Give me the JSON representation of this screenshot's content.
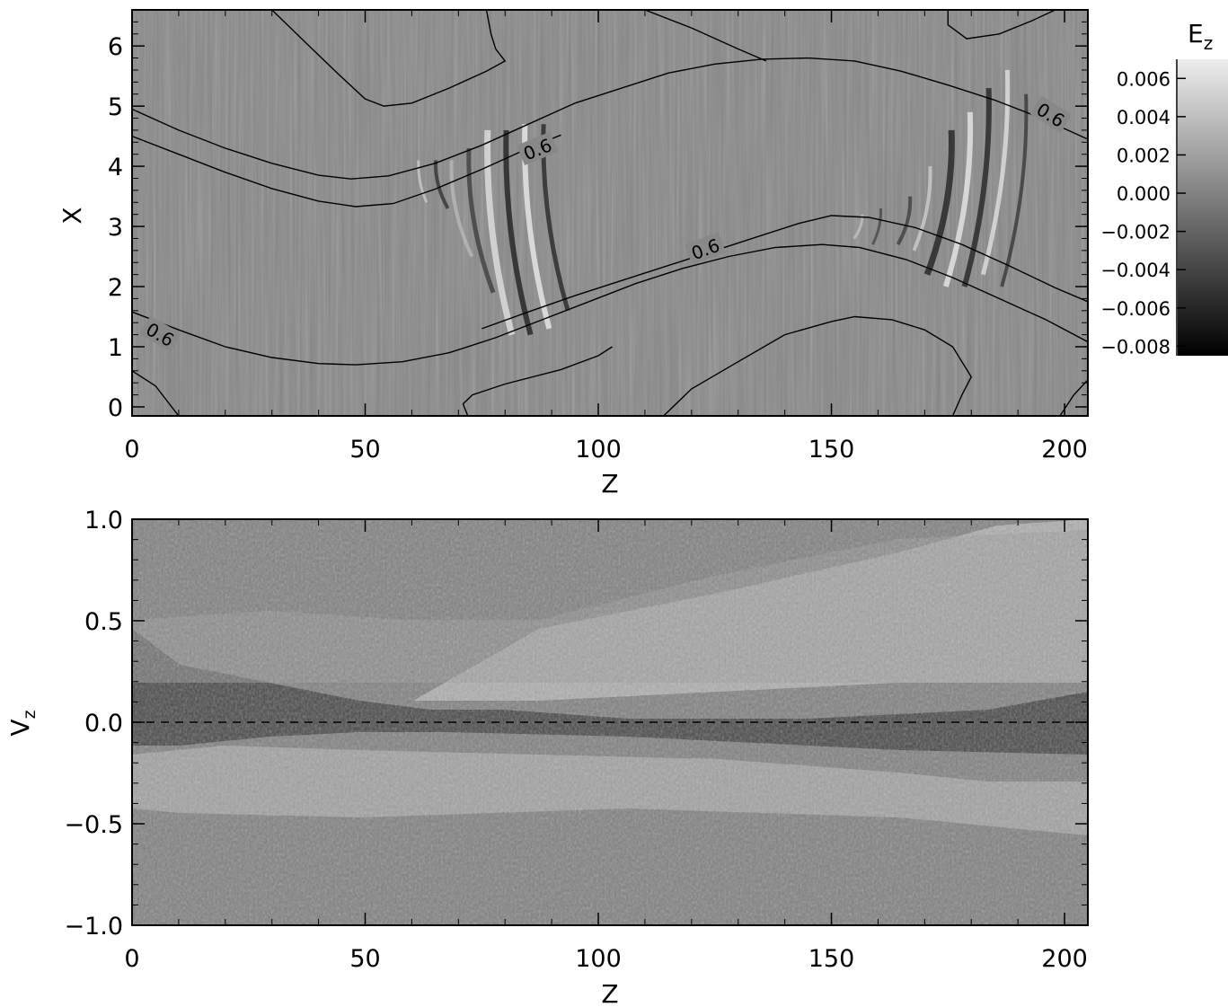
{
  "chart_data": [
    {
      "type": "heatmap",
      "title": "",
      "xlabel": "Z",
      "ylabel": "X",
      "xlim": [
        0,
        205
      ],
      "ylim": [
        -0.15,
        6.6
      ],
      "x_ticks": [
        0,
        50,
        100,
        150,
        200
      ],
      "x_tick_labels": [
        "0",
        "50",
        "100",
        "150",
        "200"
      ],
      "y_ticks": [
        0,
        1,
        2,
        3,
        4,
        5,
        6
      ],
      "y_tick_labels": [
        "0",
        "1",
        "2",
        "3",
        "4",
        "5",
        "6"
      ],
      "colormap": "grayscale",
      "colorbar": {
        "title_main": "E",
        "title_sub": "z",
        "range": [
          -0.0085,
          0.007
        ],
        "ticks": [
          0.006,
          0.004,
          0.002,
          0.0,
          -0.002,
          -0.004,
          -0.006,
          -0.008
        ],
        "tick_labels": [
          "0.006",
          "0.004",
          "0.002",
          "0.000",
          "−0.002",
          "−0.004",
          "−0.006",
          "−0.008"
        ]
      },
      "contour_level_label": "0.6",
      "contour_labels": [
        {
          "x": 87,
          "y": 4.28,
          "angle": -22
        },
        {
          "x": 123,
          "y": 2.62,
          "angle": -20
        },
        {
          "x": 197,
          "y": 4.85,
          "angle": 32
        },
        {
          "x": 6,
          "y": 1.2,
          "angle": 30
        }
      ],
      "contours": [
        [
          [
            0,
            4.95
          ],
          [
            10,
            4.6
          ],
          [
            20,
            4.3
          ],
          [
            30,
            4.05
          ],
          [
            40,
            3.85
          ],
          [
            47,
            3.79
          ],
          [
            55,
            3.84
          ],
          [
            65,
            4.05
          ],
          [
            75,
            4.35
          ],
          [
            85,
            4.7
          ],
          [
            95,
            5.05
          ],
          [
            105,
            5.3
          ],
          [
            115,
            5.55
          ],
          [
            125,
            5.7
          ],
          [
            135,
            5.78
          ],
          [
            145,
            5.8
          ],
          [
            155,
            5.75
          ],
          [
            165,
            5.58
          ],
          [
            175,
            5.35
          ],
          [
            185,
            5.1
          ],
          [
            195,
            4.8
          ],
          [
            205,
            4.45
          ]
        ],
        [
          [
            0,
            4.5
          ],
          [
            10,
            4.2
          ],
          [
            20,
            3.9
          ],
          [
            30,
            3.63
          ],
          [
            40,
            3.42
          ],
          [
            48,
            3.33
          ],
          [
            56,
            3.38
          ],
          [
            65,
            3.62
          ],
          [
            75,
            3.95
          ],
          [
            85,
            4.3
          ],
          [
            92,
            4.52
          ]
        ],
        [
          [
            75,
            1.3
          ],
          [
            85,
            1.58
          ],
          [
            95,
            1.85
          ],
          [
            105,
            2.1
          ],
          [
            115,
            2.35
          ],
          [
            125,
            2.6
          ],
          [
            135,
            2.85
          ],
          [
            143,
            3.05
          ],
          [
            150,
            3.18
          ],
          [
            158,
            3.15
          ],
          [
            168,
            2.98
          ],
          [
            178,
            2.7
          ],
          [
            188,
            2.35
          ],
          [
            198,
            1.98
          ],
          [
            205,
            1.75
          ]
        ],
        [
          [
            0,
            1.58
          ],
          [
            10,
            1.28
          ],
          [
            20,
            1.0
          ],
          [
            30,
            0.82
          ],
          [
            40,
            0.72
          ],
          [
            48,
            0.7
          ],
          [
            58,
            0.75
          ],
          [
            68,
            0.9
          ],
          [
            78,
            1.15
          ],
          [
            88,
            1.45
          ],
          [
            98,
            1.75
          ],
          [
            108,
            2.05
          ],
          [
            118,
            2.3
          ],
          [
            128,
            2.5
          ],
          [
            138,
            2.65
          ],
          [
            148,
            2.7
          ],
          [
            156,
            2.65
          ],
          [
            166,
            2.45
          ],
          [
            176,
            2.15
          ],
          [
            186,
            1.8
          ],
          [
            196,
            1.45
          ],
          [
            205,
            1.08
          ]
        ],
        [
          [
            30,
            6.6
          ],
          [
            38,
            6.0
          ],
          [
            44,
            5.55
          ],
          [
            50,
            5.12
          ],
          [
            54,
            5.0
          ],
          [
            60,
            5.05
          ],
          [
            68,
            5.3
          ],
          [
            76,
            5.58
          ],
          [
            80,
            5.75
          ],
          [
            78,
            5.95
          ],
          [
            77,
            6.2
          ],
          [
            76,
            6.6
          ]
        ],
        [
          [
            110,
            6.6
          ],
          [
            120,
            6.3
          ],
          [
            130,
            5.95
          ],
          [
            136,
            5.75
          ]
        ],
        [
          [
            175,
            6.6
          ],
          [
            175,
            6.35
          ],
          [
            179,
            6.12
          ],
          [
            186,
            6.2
          ],
          [
            193,
            6.42
          ],
          [
            198,
            6.6
          ]
        ],
        [
          [
            0,
            0.6
          ],
          [
            5,
            0.35
          ],
          [
            10,
            -0.15
          ]
        ],
        [
          [
            72,
            -0.15
          ],
          [
            71,
            0.05
          ],
          [
            73,
            0.2
          ],
          [
            80,
            0.38
          ],
          [
            92,
            0.62
          ],
          [
            100,
            0.85
          ],
          [
            103,
            1.0
          ]
        ],
        [
          [
            114,
            -0.15
          ],
          [
            120,
            0.3
          ],
          [
            130,
            0.75
          ],
          [
            140,
            1.2
          ],
          [
            150,
            1.42
          ],
          [
            155,
            1.5
          ],
          [
            163,
            1.45
          ],
          [
            170,
            1.28
          ],
          [
            176,
            1.0
          ],
          [
            180,
            0.5
          ],
          [
            178,
            0.2
          ],
          [
            176,
            -0.15
          ]
        ],
        [
          [
            199,
            -0.15
          ],
          [
            202,
            0.2
          ],
          [
            205,
            0.45
          ]
        ]
      ]
    },
    {
      "type": "heatmap",
      "title": "",
      "xlabel": "Z",
      "ylabel_main": "V",
      "ylabel_sub": "z",
      "xlim": [
        0,
        205
      ],
      "ylim": [
        -1.0,
        1.0
      ],
      "x_ticks": [
        0,
        50,
        100,
        150,
        200
      ],
      "x_tick_labels": [
        "0",
        "50",
        "100",
        "150",
        "200"
      ],
      "y_ticks": [
        1.0,
        0.5,
        0.0,
        -0.5,
        -1.0
      ],
      "y_tick_labels": [
        "1.0",
        "0.5",
        "0.0",
        "−0.5",
        "−1.0"
      ],
      "colormap": "grayscale",
      "reference_line": {
        "y": 0.0,
        "style": "dashed"
      }
    }
  ]
}
